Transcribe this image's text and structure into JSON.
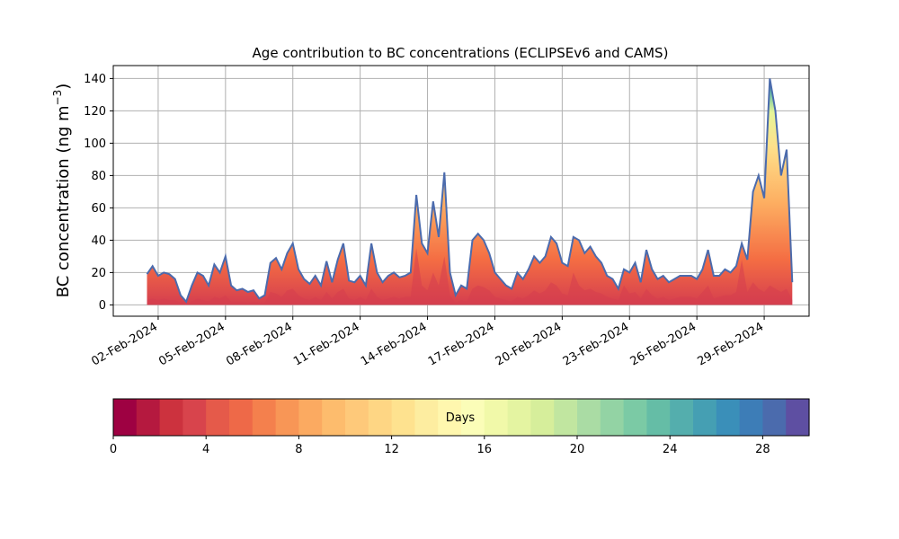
{
  "chart_data": {
    "type": "area",
    "title": "Age contribution to BC concentrations (ECLIPSEv6 and CAMS)",
    "ylabel": "BC concentration (ng m⁻³)",
    "ylabel_base": "BC concentration (ng m",
    "ylabel_exp": "−3",
    "ylabel_close": ")",
    "xlabel": "",
    "x_start": "2024-01-31",
    "x_end": "2024-03-02",
    "ylim": [
      -7,
      148
    ],
    "yticks": [
      0,
      20,
      40,
      60,
      80,
      100,
      120,
      140
    ],
    "ytick_labels": [
      "0",
      "20",
      "40",
      "60",
      "80",
      "100",
      "120",
      "140"
    ],
    "xtick_dates": [
      "2024-02-02",
      "2024-02-05",
      "2024-02-08",
      "2024-02-11",
      "2024-02-14",
      "2024-02-17",
      "2024-02-20",
      "2024-02-23",
      "2024-02-26",
      "2024-02-29"
    ],
    "xtick_labels": [
      "02-Feb-2024",
      "05-Feb-2024",
      "08-Feb-2024",
      "11-Feb-2024",
      "14-Feb-2024",
      "17-Feb-2024",
      "20-Feb-2024",
      "23-Feb-2024",
      "26-Feb-2024",
      "29-Feb-2024"
    ],
    "grid": true,
    "series_description": "stacked contributions by age in days (0-30), total shown",
    "total": {
      "dates": [
        "2024-02-01T12",
        "2024-02-01T18",
        "2024-02-02T00",
        "2024-02-02T06",
        "2024-02-02T12",
        "2024-02-02T18",
        "2024-02-03T00",
        "2024-02-03T06",
        "2024-02-03T12",
        "2024-02-03T18",
        "2024-02-04T00",
        "2024-02-04T06",
        "2024-02-04T12",
        "2024-02-04T18",
        "2024-02-05T00",
        "2024-02-05T06",
        "2024-02-05T12",
        "2024-02-05T18",
        "2024-02-06T00",
        "2024-02-06T06",
        "2024-02-06T12",
        "2024-02-06T18",
        "2024-02-07T00",
        "2024-02-07T06",
        "2024-02-07T12",
        "2024-02-07T18",
        "2024-02-08T00",
        "2024-02-08T06",
        "2024-02-08T12",
        "2024-02-08T18",
        "2024-02-09T00",
        "2024-02-09T06",
        "2024-02-09T12",
        "2024-02-09T18",
        "2024-02-10T00",
        "2024-02-10T06",
        "2024-02-10T12",
        "2024-02-10T18",
        "2024-02-11T00",
        "2024-02-11T06",
        "2024-02-11T12",
        "2024-02-11T18",
        "2024-02-12T00",
        "2024-02-12T06",
        "2024-02-12T12",
        "2024-02-12T18",
        "2024-02-13T00",
        "2024-02-13T06",
        "2024-02-13T12",
        "2024-02-13T18",
        "2024-02-14T00",
        "2024-02-14T06",
        "2024-02-14T12",
        "2024-02-14T18",
        "2024-02-15T00",
        "2024-02-15T06",
        "2024-02-15T12",
        "2024-02-15T18",
        "2024-02-16T00",
        "2024-02-16T06",
        "2024-02-16T12",
        "2024-02-16T18",
        "2024-02-17T00",
        "2024-02-17T06",
        "2024-02-17T12",
        "2024-02-17T18",
        "2024-02-18T00",
        "2024-02-18T06",
        "2024-02-18T12",
        "2024-02-18T18",
        "2024-02-19T00",
        "2024-02-19T06",
        "2024-02-19T12",
        "2024-02-19T18",
        "2024-02-20T00",
        "2024-02-20T06",
        "2024-02-20T12",
        "2024-02-20T18",
        "2024-02-21T00",
        "2024-02-21T06",
        "2024-02-21T12",
        "2024-02-21T18",
        "2024-02-22T00",
        "2024-02-22T06",
        "2024-02-22T12",
        "2024-02-22T18",
        "2024-02-23T00",
        "2024-02-23T06",
        "2024-02-23T12",
        "2024-02-23T18",
        "2024-02-24T00",
        "2024-02-24T06",
        "2024-02-24T12",
        "2024-02-24T18",
        "2024-02-25T00",
        "2024-02-25T06",
        "2024-02-25T12",
        "2024-02-25T18",
        "2024-02-26T00",
        "2024-02-26T06",
        "2024-02-26T12",
        "2024-02-26T18",
        "2024-02-27T00",
        "2024-02-27T06",
        "2024-02-27T12",
        "2024-02-27T18",
        "2024-02-28T00",
        "2024-02-28T06",
        "2024-02-28T12",
        "2024-02-28T18",
        "2024-02-29T00",
        "2024-02-29T06",
        "2024-02-29T12",
        "2024-02-29T18",
        "2024-03-01T00",
        "2024-03-01T06"
      ],
      "values": [
        19,
        24,
        18,
        20,
        19,
        16,
        6,
        2,
        12,
        20,
        18,
        12,
        25,
        20,
        30,
        12,
        9,
        10,
        8,
        9,
        4,
        6,
        26,
        29,
        22,
        32,
        38,
        22,
        16,
        13,
        18,
        12,
        27,
        14,
        28,
        38,
        15,
        14,
        18,
        12,
        38,
        20,
        14,
        18,
        20,
        17,
        18,
        20,
        68,
        38,
        32,
        64,
        42,
        82,
        20,
        6,
        12,
        10,
        40,
        44,
        40,
        32,
        20,
        16,
        12,
        10,
        20,
        16,
        22,
        30,
        26,
        30,
        42,
        38,
        26,
        24,
        42,
        40,
        32,
        36,
        30,
        26,
        18,
        16,
        10,
        22,
        20,
        26,
        14,
        34,
        22,
        16,
        18,
        14,
        16,
        18,
        18,
        18,
        16,
        22,
        34,
        18,
        18,
        22,
        20,
        24,
        38,
        28,
        70,
        80,
        66,
        140,
        120,
        80,
        96,
        14
      ],
      "age0to4_values": [
        3,
        4,
        3,
        4,
        3,
        3,
        1,
        0,
        2,
        4,
        3,
        2,
        5,
        4,
        6,
        2,
        2,
        2,
        1,
        2,
        1,
        1,
        8,
        7,
        5,
        9,
        10,
        6,
        4,
        3,
        5,
        3,
        8,
        4,
        8,
        10,
        4,
        3,
        5,
        3,
        10,
        5,
        3,
        4,
        5,
        4,
        5,
        5,
        35,
        12,
        9,
        20,
        12,
        30,
        6,
        1,
        3,
        2,
        10,
        12,
        11,
        9,
        5,
        4,
        3,
        2,
        5,
        4,
        6,
        9,
        7,
        9,
        14,
        12,
        7,
        6,
        20,
        12,
        9,
        10,
        8,
        7,
        5,
        4,
        3,
        12,
        7,
        8,
        4,
        10,
        6,
        4,
        5,
        3,
        4,
        5,
        5,
        5,
        4,
        8,
        12,
        4,
        5,
        6,
        6,
        8,
        28,
        8,
        14,
        10,
        8,
        12,
        10,
        8,
        10,
        3
      ]
    }
  },
  "colorbar": {
    "label": "Days",
    "min": 0,
    "max": 30,
    "ticks": [
      0,
      4,
      8,
      12,
      16,
      20,
      24,
      28
    ],
    "tick_labels": [
      "0",
      "4",
      "8",
      "12",
      "16",
      "20",
      "24",
      "28"
    ],
    "colors": [
      "#9e0142",
      "#b5193f",
      "#cc323e",
      "#d8444c",
      "#e55a4a",
      "#ee6948",
      "#f4804d",
      "#f89656",
      "#fbaa61",
      "#fdbc6d",
      "#fec97a",
      "#fed684",
      "#fee28f",
      "#fdedA0",
      "#fff7ae",
      "#fbfdb8",
      "#f1f9a9",
      "#e4f4a1",
      "#d6ee9b",
      "#c1e6a0",
      "#aadca4",
      "#93d3a4",
      "#7bcaa5",
      "#65bda6",
      "#54aead",
      "#459fb3",
      "#3a8fb9",
      "#3d7db7",
      "#4b6bad",
      "#5e4fa2"
    ]
  }
}
